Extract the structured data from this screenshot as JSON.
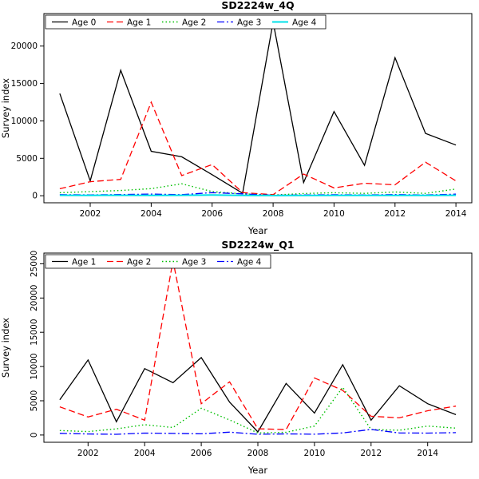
{
  "page": {
    "background": "#ffffff"
  },
  "chart_data": [
    {
      "type": "line",
      "title": "SD2224w_4Q",
      "xlabel": "Year",
      "ylabel": "Survey index",
      "xlim": [
        2000.48,
        2014.52
      ],
      "ylim": [
        -940,
        24340
      ],
      "xticks": [
        2002,
        2004,
        2006,
        2008,
        2010,
        2012,
        2014
      ],
      "yticks": [
        0,
        5000,
        10000,
        15000,
        20000
      ],
      "ytick_rotated": false,
      "grid": false,
      "legend_position": "topleft",
      "x": [
        2001,
        2002,
        2003,
        2004,
        2005,
        2006,
        2007,
        2008,
        2009,
        2010,
        2011,
        2012,
        2013,
        2014
      ],
      "series": [
        {
          "name": "Age 0",
          "color": "#000000",
          "dash": "solid",
          "width": 1.3,
          "values": [
            13650,
            1980,
            16770,
            5940,
            5200,
            2820,
            330,
            23230,
            1770,
            11250,
            4060,
            18440,
            8330,
            6770
          ]
        },
        {
          "name": "Age 1",
          "color": "#ff0000",
          "dash": "dashed",
          "width": 1.3,
          "values": [
            940,
            1880,
            2190,
            12500,
            2700,
            4170,
            420,
            150,
            2900,
            1040,
            1670,
            1460,
            4480,
            1980
          ]
        },
        {
          "name": "Age 2",
          "color": "#00c000",
          "dash": "dotted",
          "width": 1.4,
          "values": [
            400,
            550,
            700,
            950,
            1600,
            550,
            250,
            100,
            300,
            400,
            320,
            500,
            320,
            900
          ]
        },
        {
          "name": "Age 3",
          "color": "#0000ff",
          "dash": "dashdot",
          "width": 1.3,
          "values": [
            150,
            120,
            160,
            220,
            150,
            420,
            250,
            60,
            110,
            140,
            110,
            160,
            110,
            210
          ]
        },
        {
          "name": "Age 4",
          "color": "#00e0e8",
          "dash": "solid",
          "width": 2,
          "values": [
            60,
            50,
            60,
            50,
            60,
            90,
            50,
            20,
            30,
            40,
            40,
            50,
            40,
            60
          ]
        }
      ]
    },
    {
      "type": "line",
      "title": "SD2224w_Q1",
      "xlabel": "Year",
      "ylabel": "Survey index",
      "xlim": [
        2000.44,
        2015.56
      ],
      "ylim": [
        -1060,
        26560
      ],
      "xticks": [
        2002,
        2004,
        2006,
        2008,
        2010,
        2012,
        2014
      ],
      "yticks": [
        0,
        5000,
        10000,
        15000,
        20000,
        25000
      ],
      "ytick_rotated": true,
      "grid": false,
      "legend_position": "topleft",
      "x": [
        2001,
        2002,
        2003,
        2004,
        2005,
        2006,
        2007,
        2008,
        2009,
        2010,
        2011,
        2012,
        2013,
        2014,
        2015
      ],
      "series": [
        {
          "name": "Age 1",
          "color": "#000000",
          "dash": "solid",
          "width": 1.3,
          "values": [
            5140,
            10960,
            1940,
            9700,
            7650,
            11300,
            4800,
            450,
            7530,
            3200,
            10270,
            2170,
            7190,
            4570,
            2970
          ]
        },
        {
          "name": "Age 2",
          "color": "#ff0000",
          "dash": "dashed",
          "width": 1.3,
          "values": [
            4110,
            2630,
            3770,
            2170,
            25460,
            4570,
            7760,
            910,
            800,
            8330,
            6510,
            2740,
            2510,
            3540,
            4220
          ]
        },
        {
          "name": "Age 3",
          "color": "#00c000",
          "dash": "dotted",
          "width": 1.4,
          "values": [
            650,
            500,
            900,
            1500,
            1100,
            3900,
            2200,
            300,
            400,
            1300,
            6970,
            800,
            700,
            1300,
            1000
          ]
        },
        {
          "name": "Age 4",
          "color": "#0000ff",
          "dash": "dashdot",
          "width": 1.3,
          "values": [
            250,
            150,
            100,
            280,
            230,
            180,
            420,
            100,
            160,
            120,
            300,
            820,
            300,
            280,
            350
          ]
        }
      ]
    }
  ]
}
